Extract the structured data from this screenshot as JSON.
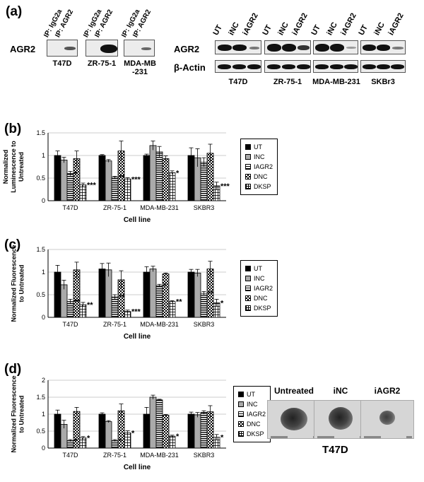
{
  "panel_labels": {
    "a": "(a)",
    "b": "(b)",
    "c": "(c)",
    "d": "(d)"
  },
  "blot_left": {
    "protein": "AGR2",
    "lanes": [
      "IP: IgG2a",
      "IP: AGR2"
    ],
    "cells": [
      "T47D",
      "ZR-75-1",
      "MDA-MB\n-231"
    ]
  },
  "blot_right": {
    "proteins": [
      "AGR2",
      "β-Actin"
    ],
    "lanes": [
      "UT",
      "iNC",
      "iAGR2"
    ],
    "cells": [
      "T47D",
      "ZR-75-1",
      "MDA-MB-231",
      "SKBr3"
    ]
  },
  "colors": {
    "UT": "#000000",
    "INC": "#aaaaaa",
    "IAGR2": "hatch-horizontal",
    "DNC": "checker",
    "DKSP": "grid"
  },
  "chart_data": [
    {
      "panel": "(b)",
      "type": "bar",
      "categories": [
        "T47D",
        "ZR-75-1",
        "MDA-MB-231",
        "SKBR3"
      ],
      "ylabel": "Normalized\nLuminescence to\nUntreated",
      "xlabel": "Cell line",
      "ylim": [
        0,
        1.5
      ],
      "yticks": [
        0,
        0.5,
        1,
        1.5
      ],
      "series": [
        {
          "name": "UT",
          "values": [
            1.0,
            1.0,
            1.0,
            1.0
          ],
          "err": [
            0.1,
            0.02,
            0.03,
            0.17
          ]
        },
        {
          "name": "INC",
          "values": [
            0.9,
            0.88,
            1.22,
            0.95
          ],
          "err": [
            0.06,
            0.03,
            0.1,
            0.2
          ]
        },
        {
          "name": "IAGR2",
          "values": [
            0.6,
            0.52,
            1.08,
            0.85
          ],
          "err": [
            0.05,
            0.02,
            0.12,
            0.1
          ]
        },
        {
          "name": "DNC",
          "values": [
            0.93,
            1.1,
            0.93,
            1.05
          ],
          "err": [
            0.17,
            0.22,
            0.06,
            0.2
          ]
        },
        {
          "name": "DKSP",
          "values": [
            0.35,
            0.48,
            0.62,
            0.33
          ],
          "err": [
            0.04,
            0.03,
            0.04,
            0.08
          ]
        }
      ],
      "annotations": [
        {
          "category": "T47D",
          "series": "IAGR2",
          "text": "*"
        },
        {
          "category": "T47D",
          "series": "DKSP",
          "text": "***"
        },
        {
          "category": "ZR-75-1",
          "series": "IAGR2",
          "text": "**"
        },
        {
          "category": "ZR-75-1",
          "series": "DKSP",
          "text": "***"
        },
        {
          "category": "MDA-MB-231",
          "series": "DKSP",
          "text": "*"
        },
        {
          "category": "SKBR3",
          "series": "DKSP",
          "text": "***"
        }
      ],
      "legend": "right"
    },
    {
      "panel": "(c)",
      "type": "bar",
      "categories": [
        "T47D",
        "ZR-75-1",
        "MDA-MB-231",
        "SKBR3"
      ],
      "ylabel": "Normalized Fluorescence\nto Untreated",
      "xlabel": "Cell line",
      "ylim": [
        0,
        1.5
      ],
      "yticks": [
        0,
        0.5,
        1,
        1.5
      ],
      "series": [
        {
          "name": "UT",
          "values": [
            1.0,
            1.07,
            1.0,
            1.0
          ],
          "err": [
            0.15,
            0.12,
            0.12,
            0.06
          ]
        },
        {
          "name": "INC",
          "values": [
            0.72,
            1.05,
            1.07,
            0.98
          ],
          "err": [
            0.1,
            0.15,
            0.06,
            0.08
          ]
        },
        {
          "name": "IAGR2",
          "values": [
            0.35,
            0.45,
            0.7,
            0.53
          ],
          "err": [
            0.05,
            0.05,
            0.03,
            0.04
          ]
        },
        {
          "name": "DNC",
          "values": [
            1.05,
            0.83,
            0.96,
            1.07
          ],
          "err": [
            0.17,
            0.2,
            0.02,
            0.17
          ]
        },
        {
          "name": "DKSP",
          "values": [
            0.28,
            0.13,
            0.35,
            0.32
          ],
          "err": [
            0.05,
            0.03,
            0.02,
            0.08
          ]
        }
      ],
      "annotations": [
        {
          "category": "T47D",
          "series": "IAGR2",
          "text": "**"
        },
        {
          "category": "T47D",
          "series": "DKSP",
          "text": "**"
        },
        {
          "category": "ZR-75-1",
          "series": "IAGR2",
          "text": "**"
        },
        {
          "category": "ZR-75-1",
          "series": "DKSP",
          "text": "***"
        },
        {
          "category": "MDA-MB-231",
          "series": "IAGR2",
          "text": "*"
        },
        {
          "category": "MDA-MB-231",
          "series": "DKSP",
          "text": "**"
        },
        {
          "category": "SKBR3",
          "series": "IAGR2",
          "text": "**"
        },
        {
          "category": "SKBR3",
          "series": "DKSP",
          "text": "*"
        }
      ],
      "legend": "right"
    },
    {
      "panel": "(d)",
      "type": "bar",
      "categories": [
        "T47D",
        "ZR-75-1",
        "MDA-MB-231",
        "SKBR3"
      ],
      "ylabel": "Normalized Fluorescence\nto Untreated",
      "xlabel": "Cell line",
      "ylim": [
        0,
        2
      ],
      "yticks": [
        0,
        0.5,
        1,
        1.5,
        2
      ],
      "series": [
        {
          "name": "UT",
          "values": [
            1.0,
            1.0,
            1.0,
            1.0
          ],
          "err": [
            0.12,
            0.04,
            0.2,
            0.06
          ]
        },
        {
          "name": "INC",
          "values": [
            0.7,
            0.78,
            1.5,
            0.98
          ],
          "err": [
            0.12,
            0.03,
            0.06,
            0.07
          ]
        },
        {
          "name": "IAGR2",
          "values": [
            0.22,
            0.22,
            1.42,
            1.05
          ],
          "err": [
            0.03,
            0.03,
            0.02,
            0.05
          ]
        },
        {
          "name": "DNC",
          "values": [
            1.08,
            1.1,
            0.97,
            1.07
          ],
          "err": [
            0.12,
            0.2,
            0.02,
            0.18
          ]
        },
        {
          "name": "DKSP",
          "values": [
            0.3,
            0.45,
            0.35,
            0.32
          ],
          "err": [
            0.04,
            0.06,
            0.03,
            0.08
          ]
        }
      ],
      "annotations": [
        {
          "category": "T47D",
          "series": "IAGR2",
          "text": "*"
        },
        {
          "category": "T47D",
          "series": "DKSP",
          "text": "*"
        },
        {
          "category": "ZR-75-1",
          "series": "IAGR2",
          "text": "*"
        },
        {
          "category": "ZR-75-1",
          "series": "DKSP",
          "text": "*"
        },
        {
          "category": "MDA-MB-231",
          "series": "DKSP",
          "text": "*"
        },
        {
          "category": "SKBR3",
          "series": "DKSP",
          "text": "*"
        }
      ],
      "legend": "right"
    }
  ],
  "spheroids": {
    "labels": [
      "Untreated",
      "iNC",
      "iAGR2"
    ],
    "cell": "T47D"
  }
}
